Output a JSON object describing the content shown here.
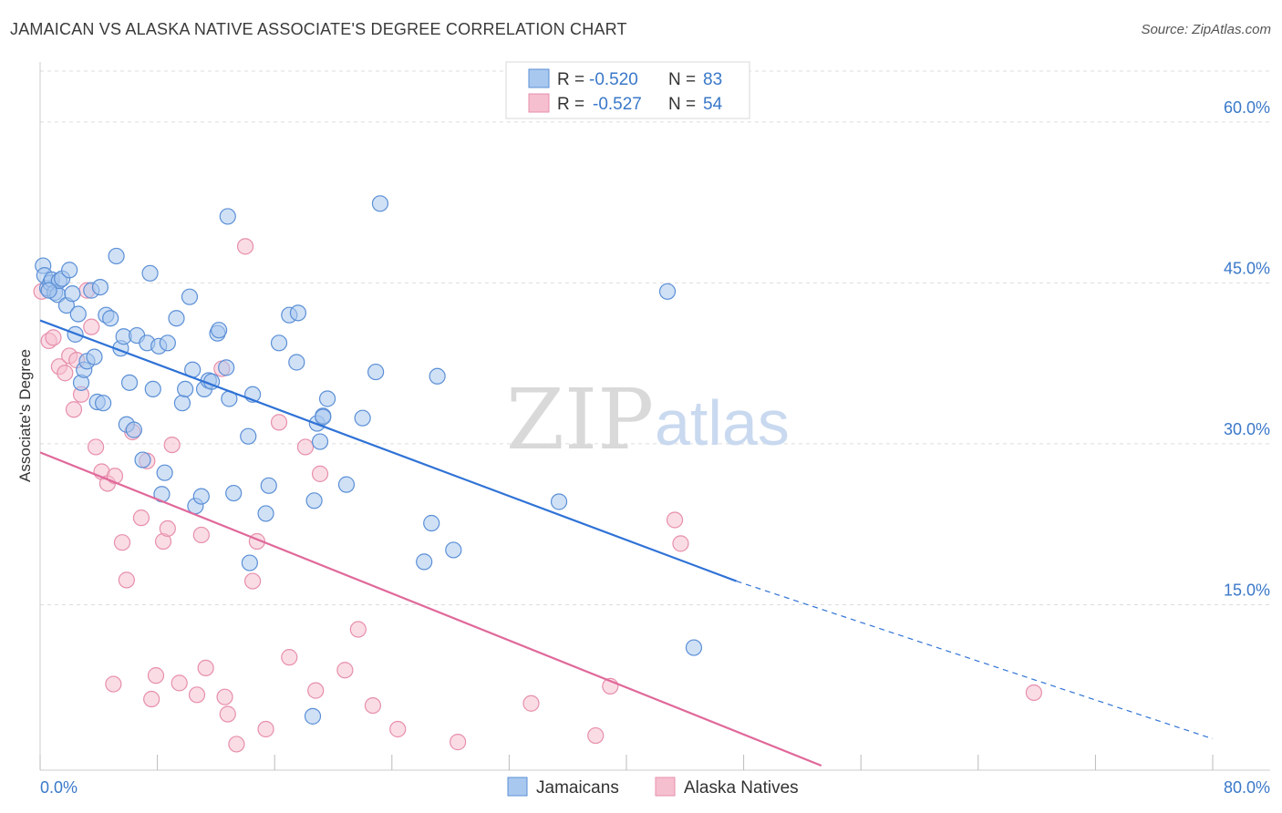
{
  "title": "JAMAICAN VS ALASKA NATIVE ASSOCIATE'S DEGREE CORRELATION CHART",
  "source": "Source: ZipAtlas.com",
  "watermark": {
    "zip": "ZIP",
    "atlas": "atlas"
  },
  "colors": {
    "blue_fill": "#a9c8ef",
    "blue_stroke": "#5b8fd6",
    "blue_line": "#2f72d6",
    "pink_fill": "#f6bfd0",
    "pink_stroke": "#e78fab",
    "pink_line": "#e0689a",
    "tick_text": "#3a78c9",
    "grid": "#dddddd"
  },
  "legend": {
    "rows": [
      {
        "r_label": "R =",
        "r_value": "-0.520",
        "n_label": "N =",
        "n_value": "83",
        "color": "blue"
      },
      {
        "r_label": "R =",
        "r_value": "-0.527",
        "n_label": "N =",
        "n_value": "54",
        "color": "pink"
      }
    ]
  },
  "chart_data": {
    "type": "scatter",
    "ylabel": "Associate's Degree",
    "xlabel": "",
    "xlim": [
      0,
      80
    ],
    "ylim": [
      0,
      65
    ],
    "x_tick_labels": {
      "left": "0.0%",
      "right": "80.0%"
    },
    "y_ticks": [
      15,
      30,
      45,
      60
    ],
    "y_tick_labels": [
      "15.0%",
      "30.0%",
      "45.0%",
      "60.0%"
    ],
    "grid": true,
    "legend_position": "bottom",
    "series": [
      {
        "name": "Jamaicans",
        "color": "blue",
        "trend": {
          "x0": 0,
          "y0": 41.5,
          "x1": 47.5,
          "y1": 17.2,
          "dash_to_x": 80,
          "dash_to_y": 2.5
        },
        "points": [
          [
            0.2,
            46.6
          ],
          [
            0.3,
            45.7
          ],
          [
            0.5,
            44.5
          ],
          [
            0.7,
            45.0
          ],
          [
            0.8,
            45.3
          ],
          [
            1.0,
            44.1
          ],
          [
            1.2,
            43.9
          ],
          [
            1.3,
            45.2
          ],
          [
            1.5,
            45.4
          ],
          [
            1.8,
            42.9
          ],
          [
            2.0,
            46.2
          ],
          [
            2.2,
            44.0
          ],
          [
            2.4,
            40.2
          ],
          [
            2.6,
            42.1
          ],
          [
            2.8,
            35.7
          ],
          [
            3.0,
            36.9
          ],
          [
            3.2,
            37.7
          ],
          [
            3.5,
            44.3
          ],
          [
            3.7,
            38.1
          ],
          [
            3.9,
            33.9
          ],
          [
            4.1,
            44.6
          ],
          [
            4.3,
            33.8
          ],
          [
            4.5,
            42.0
          ],
          [
            4.8,
            41.7
          ],
          [
            5.2,
            47.5
          ],
          [
            5.5,
            38.9
          ],
          [
            5.7,
            40.0
          ],
          [
            5.9,
            31.8
          ],
          [
            6.1,
            35.7
          ],
          [
            6.4,
            31.3
          ],
          [
            6.6,
            40.1
          ],
          [
            7.0,
            28.5
          ],
          [
            7.3,
            39.4
          ],
          [
            7.5,
            45.9
          ],
          [
            7.7,
            35.1
          ],
          [
            8.1,
            39.1
          ],
          [
            8.3,
            25.3
          ],
          [
            8.5,
            27.3
          ],
          [
            8.7,
            39.4
          ],
          [
            9.3,
            41.7
          ],
          [
            9.7,
            33.8
          ],
          [
            9.9,
            35.1
          ],
          [
            10.2,
            43.7
          ],
          [
            10.4,
            36.9
          ],
          [
            10.6,
            24.2
          ],
          [
            11.0,
            25.1
          ],
          [
            11.2,
            35.1
          ],
          [
            11.5,
            35.9
          ],
          [
            11.7,
            35.8
          ],
          [
            12.1,
            40.3
          ],
          [
            12.2,
            40.6
          ],
          [
            12.7,
            37.1
          ],
          [
            12.9,
            34.2
          ],
          [
            13.2,
            25.4
          ],
          [
            12.8,
            51.2
          ],
          [
            14.2,
            30.7
          ],
          [
            14.3,
            18.9
          ],
          [
            14.5,
            34.6
          ],
          [
            15.4,
            23.5
          ],
          [
            15.6,
            26.1
          ],
          [
            16.3,
            39.4
          ],
          [
            17.0,
            42.0
          ],
          [
            17.5,
            37.6
          ],
          [
            17.6,
            42.2
          ],
          [
            18.6,
            4.6
          ],
          [
            18.7,
            24.7
          ],
          [
            19.1,
            30.2
          ],
          [
            18.9,
            31.9
          ],
          [
            19.3,
            32.6
          ],
          [
            19.6,
            34.2
          ],
          [
            19.3,
            32.5
          ],
          [
            20.9,
            26.2
          ],
          [
            22.0,
            32.4
          ],
          [
            22.9,
            36.7
          ],
          [
            23.2,
            52.4
          ],
          [
            26.2,
            19.0
          ],
          [
            26.7,
            22.6
          ],
          [
            27.1,
            36.3
          ],
          [
            28.2,
            20.1
          ],
          [
            35.4,
            24.6
          ],
          [
            42.8,
            44.2
          ],
          [
            44.6,
            11.0
          ],
          [
            0.6,
            44.3
          ]
        ]
      },
      {
        "name": "Alaska Natives",
        "color": "pink",
        "trend": {
          "x0": 0,
          "y0": 29.2,
          "x1": 53.3,
          "y1": 0
        },
        "points": [
          [
            0.1,
            44.2
          ],
          [
            0.6,
            39.6
          ],
          [
            0.9,
            39.9
          ],
          [
            1.3,
            37.2
          ],
          [
            1.7,
            36.6
          ],
          [
            2.0,
            38.2
          ],
          [
            2.3,
            33.2
          ],
          [
            2.5,
            37.8
          ],
          [
            2.8,
            34.6
          ],
          [
            3.2,
            44.3
          ],
          [
            3.5,
            40.9
          ],
          [
            3.8,
            29.7
          ],
          [
            4.2,
            27.4
          ],
          [
            4.6,
            26.3
          ],
          [
            5.1,
            27.0
          ],
          [
            5.6,
            20.8
          ],
          [
            5.9,
            17.3
          ],
          [
            6.3,
            31.1
          ],
          [
            6.9,
            23.1
          ],
          [
            7.3,
            28.4
          ],
          [
            7.6,
            6.2
          ],
          [
            8.4,
            20.9
          ],
          [
            8.7,
            22.1
          ],
          [
            9.0,
            29.9
          ],
          [
            9.5,
            7.7
          ],
          [
            10.7,
            6.6
          ],
          [
            11.0,
            21.5
          ],
          [
            11.3,
            9.1
          ],
          [
            12.4,
            37.0
          ],
          [
            12.8,
            4.8
          ],
          [
            12.6,
            6.4
          ],
          [
            13.4,
            2.0
          ],
          [
            14.0,
            48.4
          ],
          [
            14.5,
            17.2
          ],
          [
            14.8,
            20.9
          ],
          [
            15.4,
            3.4
          ],
          [
            16.3,
            32.0
          ],
          [
            17.0,
            10.1
          ],
          [
            18.1,
            29.7
          ],
          [
            18.8,
            7.0
          ],
          [
            19.1,
            27.2
          ],
          [
            20.8,
            8.9
          ],
          [
            21.7,
            12.7
          ],
          [
            22.7,
            5.6
          ],
          [
            24.4,
            3.4
          ],
          [
            28.5,
            2.2
          ],
          [
            33.5,
            5.8
          ],
          [
            37.9,
            2.8
          ],
          [
            38.9,
            7.4
          ],
          [
            43.3,
            22.9
          ],
          [
            43.7,
            20.7
          ],
          [
            67.8,
            6.8
          ],
          [
            5.0,
            7.6
          ],
          [
            7.9,
            8.4
          ]
        ]
      }
    ]
  }
}
